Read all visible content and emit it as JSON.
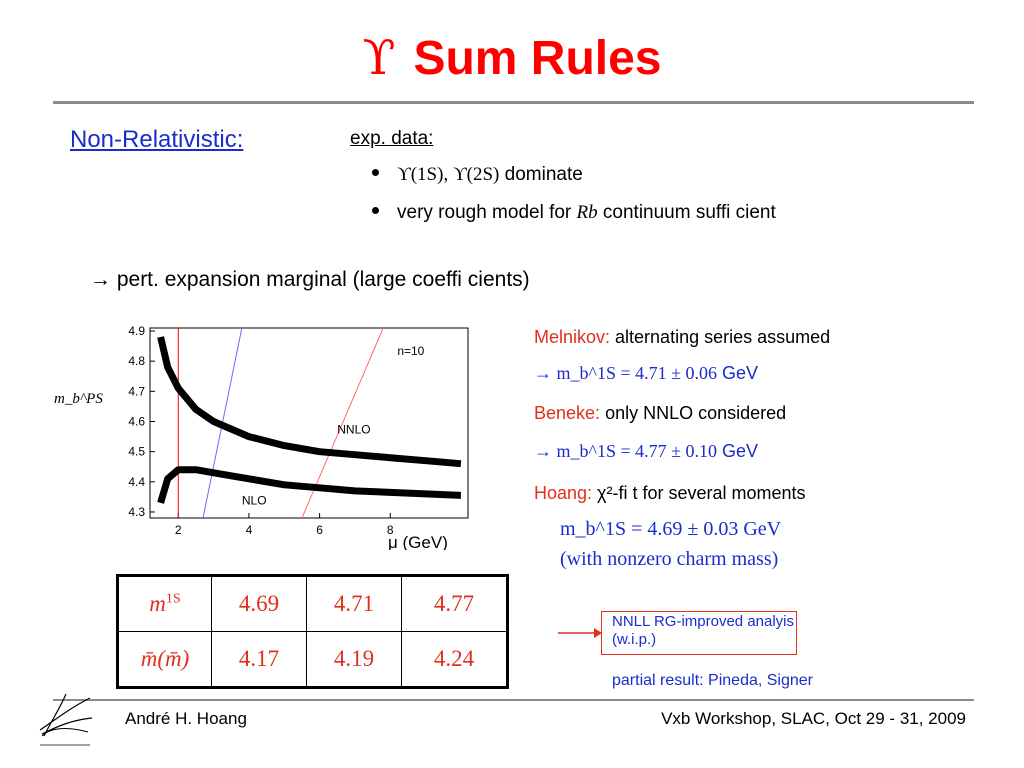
{
  "title": {
    "symbol": "ϒ",
    "text": "Sum Rules"
  },
  "non_relativistic": "Non-Relativistic:",
  "exp_data": {
    "heading": "exp. data:",
    "bullets": [
      {
        "math": "ϒ(1S), ϒ(2S)",
        "text": " dominate"
      },
      {
        "pre": "very rough model for ",
        "math": "Rb",
        "text": " continuum suffi cient"
      }
    ]
  },
  "pert": "→ pert. expansion marginal (large coeffi cients)",
  "right": {
    "melnikov_name": "Melnikov:",
    "melnikov_text": " alternating series assumed",
    "melnikov_result": "→ m_b^1S = 4.71 ± 0.06",
    "melnikov_unit": " GeV",
    "beneke_name": "Beneke:",
    "beneke_text": " only NNLO considered",
    "beneke_result": "→ m_b^1S = 4.77 ± 0.10",
    "beneke_unit": " GeV",
    "hoang_name": "Hoang:",
    "hoang_text": " χ²-fi t for several moments",
    "hoang_result": "m_b^1S = 4.69 ± 0.03 GeV",
    "hoang_note": "(with nonzero charm mass)"
  },
  "box_note": "NNLL RG-improved analyis (w.i.p.)",
  "partial_result": "partial result: Pineda, Signer",
  "table": {
    "row_labels": [
      "m1S",
      "m̄(m̄)"
    ],
    "rows": [
      [
        "4.69",
        "4.71",
        "4.77"
      ],
      [
        "4.17",
        "4.19",
        "4.24"
      ]
    ]
  },
  "footer": {
    "author": "André H. Hoang",
    "event": "Vxb Workshop, SLAC, Oct 29 - 31, 2009"
  },
  "chart_data": {
    "type": "line",
    "ylabel": "m_b^PS",
    "xlabel": "μ (GeV)",
    "xlim": [
      1.2,
      10.2
    ],
    "ylim": [
      4.28,
      4.91
    ],
    "x_ticks": [
      2,
      4,
      6,
      8
    ],
    "y_ticks": [
      4.3,
      4.4,
      4.5,
      4.6,
      4.7,
      4.8,
      4.9
    ],
    "annotation": "n=10",
    "series": [
      {
        "name": "NNLO",
        "x": [
          1.5,
          1.7,
          2.0,
          2.5,
          3.0,
          4.0,
          5.0,
          6.0,
          7.0,
          8.0,
          9.0,
          10.0
        ],
        "y": [
          4.88,
          4.78,
          4.71,
          4.64,
          4.6,
          4.55,
          4.52,
          4.5,
          4.49,
          4.48,
          4.47,
          4.46
        ]
      },
      {
        "name": "NLO",
        "x": [
          1.5,
          1.7,
          2.0,
          2.5,
          3.0,
          4.0,
          5.0,
          6.0,
          7.0,
          8.0,
          9.0,
          10.0
        ],
        "y": [
          4.33,
          4.41,
          4.44,
          4.44,
          4.43,
          4.41,
          4.39,
          4.38,
          4.37,
          4.365,
          4.36,
          4.355
        ]
      }
    ],
    "vertical_lines": [
      {
        "x1": 2.0,
        "x2": 2.0,
        "color": "#ff0000"
      },
      {
        "x1": 2.7,
        "x2": 3.8,
        "color": "#6a6aff"
      },
      {
        "x1": 5.5,
        "x2": 7.8,
        "color": "#ff6a6a"
      }
    ]
  }
}
